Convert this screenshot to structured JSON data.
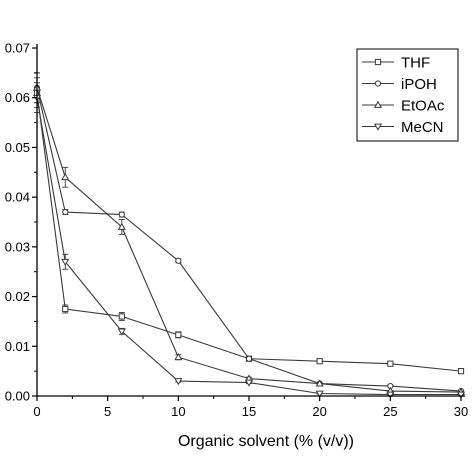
{
  "chart_data": {
    "type": "line",
    "title": "",
    "xlabel": "Organic solvent (% (v/v))",
    "ylabel": "",
    "xlim": [
      0,
      30
    ],
    "ylim": [
      0,
      0.07
    ],
    "xticks": [
      0,
      5,
      10,
      15,
      20,
      25,
      30
    ],
    "xtick_labels": [
      "0",
      "5",
      "10",
      "15",
      "20",
      "25",
      "30"
    ],
    "yticks": [
      0,
      0.01,
      0.02,
      0.03,
      0.04,
      0.05,
      0.06,
      0.07
    ],
    "ytick_labels": [
      "0.00",
      "0.01",
      "0.02",
      "0.03",
      "0.04",
      "0.05",
      "0.06",
      "0.07"
    ],
    "grid": false,
    "legend_position": "top-right",
    "x": [
      0,
      2,
      6,
      10,
      15,
      20,
      25,
      30
    ],
    "series": [
      {
        "name": "THF",
        "marker": "square",
        "values": [
          0.061,
          0.0175,
          0.016,
          0.0123,
          0.0075,
          0.007,
          0.0065,
          0.005
        ],
        "errors": [
          0.003,
          0.0008,
          0.0008,
          0.0006,
          0.0003,
          0.0003,
          0.0003,
          0.0002
        ]
      },
      {
        "name": "iPOH",
        "marker": "circle",
        "values": [
          0.062,
          0.037,
          0.0365,
          0.0272,
          0.0075,
          0.0025,
          0.002,
          0.001
        ],
        "errors": [
          0.003,
          0.0005,
          0.0005,
          0.0004,
          0.0003,
          0.0002,
          0.0002,
          0.0001
        ]
      },
      {
        "name": "EtOAc",
        "marker": "triangle-up",
        "values": [
          0.062,
          0.044,
          0.034,
          0.0078,
          0.0035,
          0.0025,
          0.001,
          0.0008
        ],
        "errors": [
          0.003,
          0.002,
          0.0015,
          0.0005,
          0.0003,
          0.0002,
          0.0001,
          0.0001
        ]
      },
      {
        "name": "MeCN",
        "marker": "triangle-down",
        "values": [
          0.06,
          0.027,
          0.013,
          0.003,
          0.0027,
          0.0005,
          0.0003,
          0.0003
        ],
        "errors": [
          0.003,
          0.0015,
          0.0006,
          0.0002,
          0.0002,
          0.0001,
          0.0001,
          0.0001
        ]
      }
    ],
    "colors": {
      "line": "#3a3a3a",
      "axis": "#000000",
      "marker_fill": "#ffffff"
    }
  }
}
